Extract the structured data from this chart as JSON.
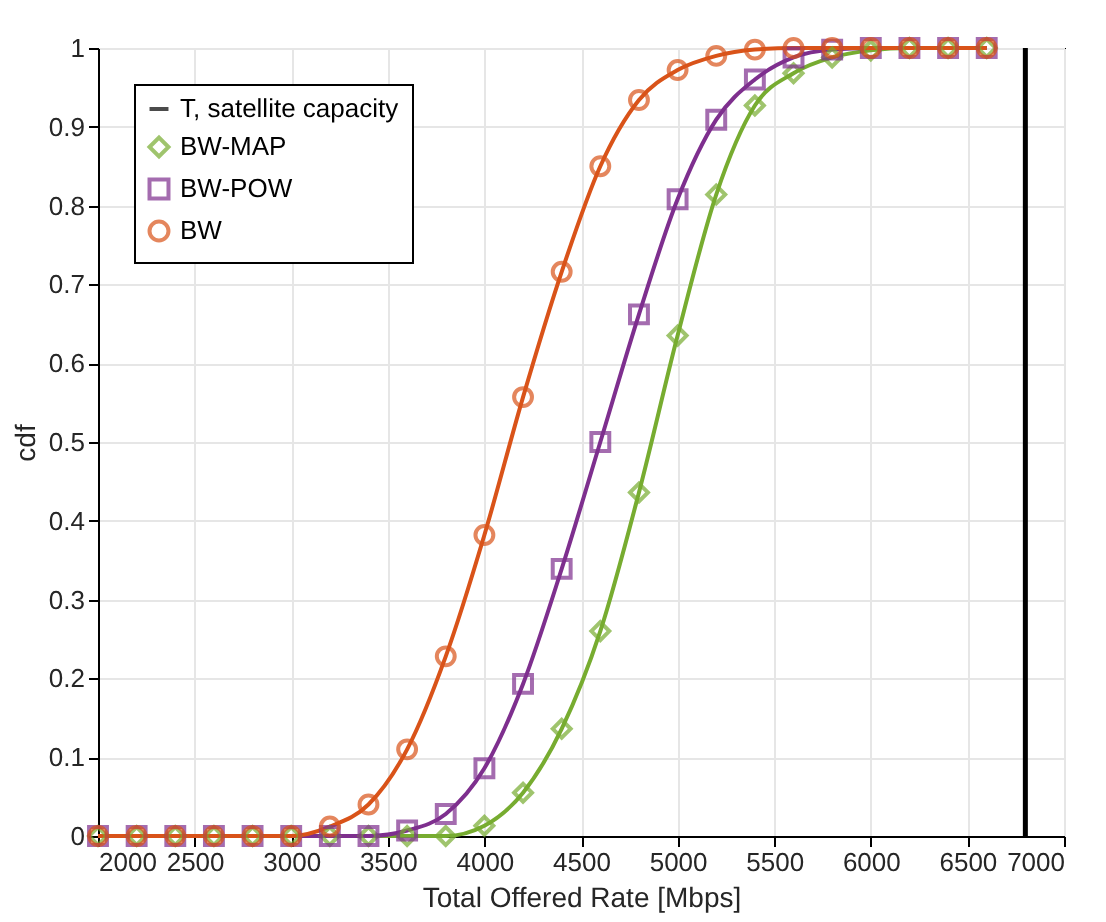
{
  "chart_data": {
    "type": "line",
    "xlabel": "Total Offered Rate [Mbps]",
    "ylabel": "cdf",
    "x": [
      2000,
      2200,
      2400,
      2600,
      2800,
      3000,
      3200,
      3400,
      3600,
      3800,
      4000,
      4200,
      4400,
      4600,
      4800,
      5000,
      5200,
      5400,
      5600,
      5800,
      6000,
      6200,
      6400,
      6600
    ],
    "series": [
      {
        "name": "T, satellite capacity",
        "color": "#000000",
        "x": [
          6800,
          6800
        ],
        "values": [
          0,
          1
        ],
        "marker": "none"
      },
      {
        "name": "BW-MAP",
        "color": "#77ac30",
        "marker": "diamond",
        "values": [
          0,
          0,
          0,
          0,
          0,
          0,
          0,
          0,
          0,
          0,
          0.013,
          0.055,
          0.136,
          0.26,
          0.436,
          0.635,
          0.814,
          0.927,
          0.968,
          0.988,
          0.997,
          1,
          1,
          1
        ]
      },
      {
        "name": "BW-POW",
        "color": "#7e2f8e",
        "marker": "square",
        "values": [
          0,
          0,
          0,
          0,
          0,
          0,
          0,
          0,
          0.007,
          0.028,
          0.086,
          0.193,
          0.339,
          0.5,
          0.662,
          0.808,
          0.909,
          0.96,
          0.988,
          0.998,
          1,
          1,
          1,
          1
        ]
      },
      {
        "name": "BW",
        "color": "#d95319",
        "marker": "circle",
        "values": [
          0,
          0,
          0,
          0,
          0,
          0,
          0.012,
          0.04,
          0.11,
          0.228,
          0.382,
          0.557,
          0.716,
          0.85,
          0.934,
          0.972,
          0.99,
          0.998,
          1,
          1,
          1,
          1,
          1,
          1
        ]
      }
    ],
    "xlim": [
      2000,
      7000
    ],
    "xticks": [
      2000,
      2500,
      3000,
      3500,
      4000,
      4500,
      5000,
      5500,
      6000,
      6500,
      7000
    ],
    "ylim": [
      0,
      1
    ],
    "yticks": [
      0,
      0.1,
      0.2,
      0.3,
      0.4,
      0.5,
      0.6,
      0.7,
      0.8,
      0.9,
      1
    ],
    "grid": true,
    "legend": "top left",
    "line_style": "solid"
  }
}
